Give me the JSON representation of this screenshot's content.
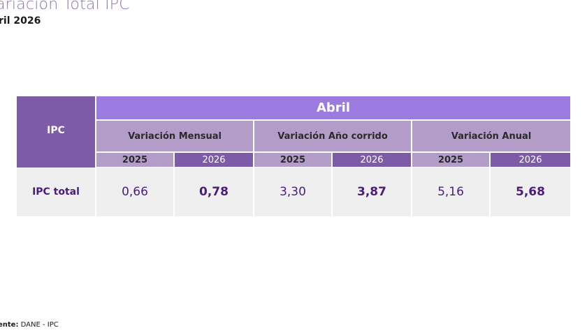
{
  "header": {
    "title": "ariación Total IPC",
    "subtitle": "ril 2026"
  },
  "table": {
    "row_header": "IPC",
    "month": "Abril",
    "groups": [
      {
        "label": "Variación Mensual",
        "year_prev": "2025",
        "year_curr": "2026",
        "value_prev": "0,66",
        "value_curr": "0,78"
      },
      {
        "label": "Variación Año corrido",
        "year_prev": "2025",
        "year_curr": "2026",
        "value_prev": "3,30",
        "value_curr": "3,87"
      },
      {
        "label": "Variación Anual",
        "year_prev": "2025",
        "year_curr": "2026",
        "value_prev": "5,16",
        "value_curr": "5,68"
      }
    ],
    "row_label": "IPC total"
  },
  "footer": {
    "source_label": "ente:",
    "source_value": " DANE - IPC"
  },
  "colors": {
    "dark_purple": "#7d5ba6",
    "bright_purple": "#9b7be0",
    "light_purple": "#b49cc9",
    "value_text": "#4b1d7a",
    "row_bg": "#efefef"
  }
}
